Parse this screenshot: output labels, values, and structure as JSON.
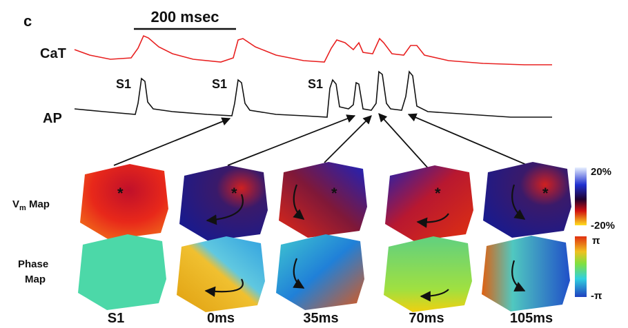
{
  "panel_label": "c",
  "scale_bar": "200 msec",
  "traces": {
    "cat": "CaT",
    "ap": "AP",
    "stimuli": [
      "S1",
      "S1",
      "S1"
    ]
  },
  "rows": {
    "vm": {
      "base": "V",
      "sub": "m",
      "rest": " Map"
    },
    "phase": [
      "Phase",
      "Map"
    ]
  },
  "colorbars": {
    "vm": {
      "top": "20%",
      "bottom": "-20%"
    },
    "phase": {
      "top": "π",
      "bottom": "-π"
    }
  },
  "columns": [
    "S1",
    "0ms",
    "35ms",
    "70ms",
    "105ms"
  ]
}
